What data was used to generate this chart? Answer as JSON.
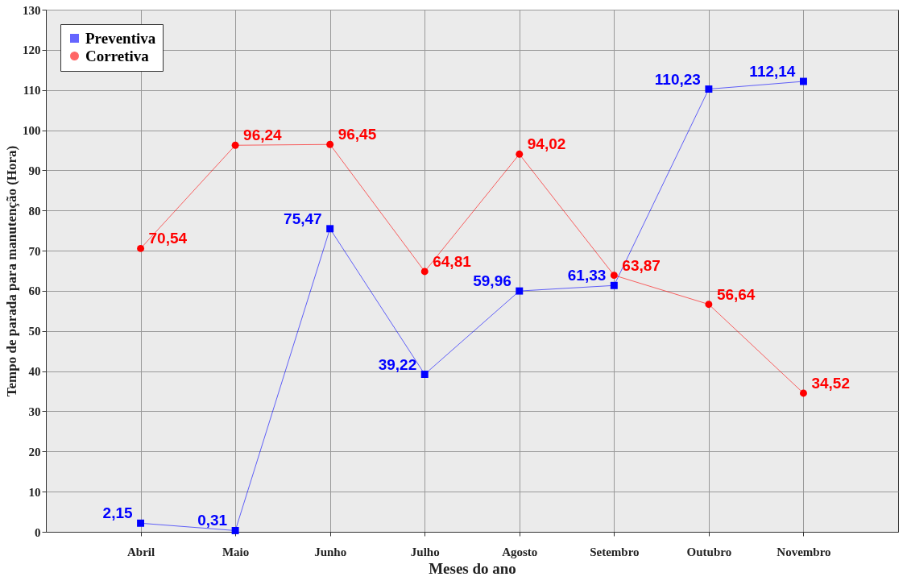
{
  "chart_data": {
    "type": "line",
    "xlabel": "Meses do ano",
    "ylabel": "Tempo de parada para manutenção (Hora)",
    "categories": [
      "Abril",
      "Maio",
      "Junho",
      "Julho",
      "Agosto",
      "Setembro",
      "Outubro",
      "Novembro"
    ],
    "series": [
      {
        "name": "Preventiva",
        "color": "#0000ff",
        "marker": "square",
        "values": [
          2.15,
          0.31,
          75.47,
          39.22,
          59.96,
          61.33,
          110.23,
          112.14
        ],
        "value_labels": [
          "2,15",
          "0,31",
          "75,47",
          "39,22",
          "59,96",
          "61,33",
          "110,23",
          "112,14"
        ]
      },
      {
        "name": "Corretiva",
        "color": "#ff0000",
        "marker": "circle",
        "values": [
          70.54,
          96.24,
          96.45,
          64.81,
          94.02,
          63.87,
          56.64,
          34.52
        ],
        "value_labels": [
          "70,54",
          "96,24",
          "96,45",
          "64,81",
          "94,02",
          "63,87",
          "56,64",
          "34,52"
        ]
      }
    ],
    "ylim": [
      0,
      130
    ],
    "yticks": [
      0,
      10,
      20,
      30,
      40,
      50,
      60,
      70,
      80,
      90,
      100,
      110,
      120,
      130
    ],
    "grid": true,
    "legend": "top left",
    "line_style": "solid"
  }
}
